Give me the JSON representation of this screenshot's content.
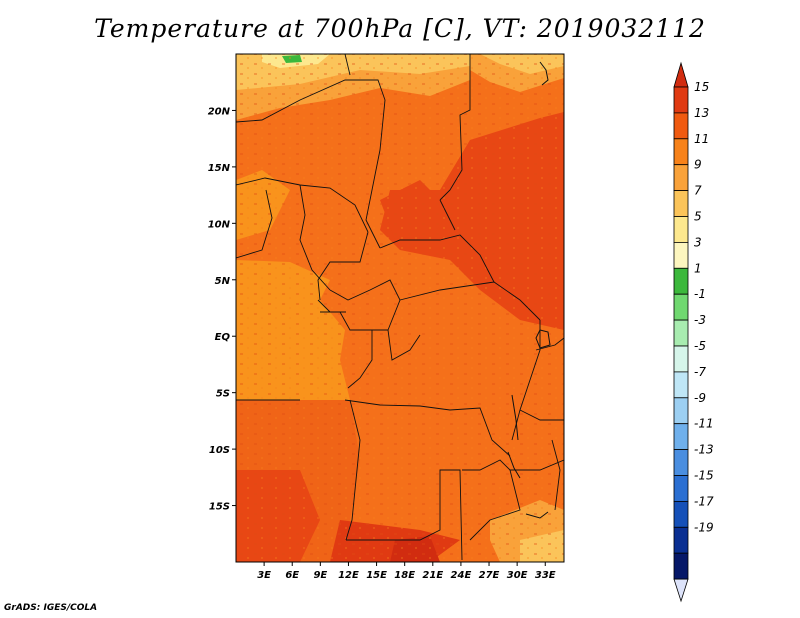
{
  "title": "Temperature at 700hPa [C], VT: 2019032112",
  "credit": "GrADS: IGES/COLA",
  "map": {
    "projection": "lat-lon",
    "lon_range": [
      0,
      35
    ],
    "lat_range": [
      -20,
      25
    ],
    "lon_ticks": [
      "3E",
      "6E",
      "9E",
      "12E",
      "15E",
      "18E",
      "21E",
      "24E",
      "27E",
      "30E",
      "33E"
    ],
    "lat_ticks": [
      "20N",
      "15N",
      "10N",
      "5N",
      "EQ",
      "5S",
      "10S",
      "15S"
    ]
  },
  "colorbar": {
    "levels": [
      "15",
      "13",
      "11",
      "9",
      "7",
      "5",
      "3",
      "1",
      "-1",
      "-3",
      "-5",
      "-7",
      "-9",
      "-11",
      "-13",
      "-15",
      "-17",
      "-19"
    ],
    "colors": [
      "#e03a12",
      "#f05a10",
      "#f7821a",
      "#f9a23a",
      "#fbc45a",
      "#fde88e",
      "#fdf6bf",
      "#3cb83c",
      "#70d870",
      "#a8ecb0",
      "#d6f5ea",
      "#bfe6f6",
      "#9ccff2",
      "#6fb0ec",
      "#4a8ee0",
      "#2b6fd2",
      "#1550b8",
      "#0a2f92",
      "#061868"
    ],
    "over_color": "#d12c10",
    "under_color": "#dde3fa"
  }
}
